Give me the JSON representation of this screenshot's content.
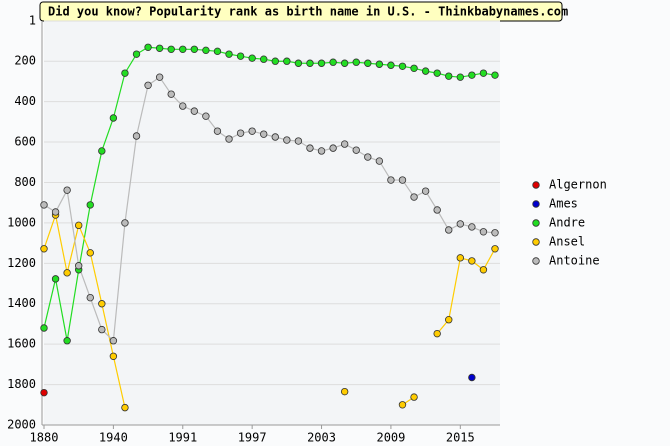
{
  "chart_data": {
    "type": "line",
    "title": "Did you know? Popularity rank as birth name in U.S. - Thinkbabynames.com",
    "categories": [
      1880,
      null,
      null,
      null,
      null,
      null,
      1940,
      null,
      null,
      null,
      null,
      null,
      1991,
      null,
      null,
      null,
      null,
      null,
      1997,
      null,
      null,
      null,
      null,
      null,
      2003,
      null,
      null,
      null,
      null,
      null,
      2009,
      null,
      null,
      null,
      null,
      null,
      2015,
      null,
      null,
      null
    ],
    "ylim": [
      1,
      2000
    ],
    "inverted": true,
    "yticks": [
      1,
      200,
      400,
      600,
      800,
      1000,
      1200,
      1400,
      1600,
      1800,
      2000
    ],
    "grid": true,
    "legend": "right",
    "series": [
      {
        "name": "Algernon",
        "color": "#dd0000",
        "values": [
          1840,
          null,
          null,
          null,
          null,
          null,
          null,
          null,
          null,
          null,
          null,
          null,
          null,
          null,
          null,
          null,
          null,
          null,
          null,
          null,
          null,
          null,
          null,
          null,
          null,
          null,
          null,
          null,
          null,
          null,
          null,
          null,
          null,
          null,
          null,
          null,
          null,
          null,
          null,
          null
        ]
      },
      {
        "name": "Ames",
        "color": "#0000cc",
        "values": [
          null,
          null,
          null,
          null,
          null,
          null,
          null,
          null,
          null,
          null,
          null,
          null,
          null,
          null,
          null,
          null,
          null,
          null,
          null,
          null,
          null,
          null,
          null,
          null,
          null,
          null,
          null,
          null,
          null,
          null,
          null,
          null,
          null,
          null,
          null,
          null,
          null,
          1765,
          null,
          null
        ]
      },
      {
        "name": "Andre",
        "color": "#22dd22",
        "values": [
          1520,
          1277,
          1583,
          1232,
          911,
          644,
          481,
          259,
          165,
          131,
          136,
          141,
          141,
          141,
          146,
          151,
          165,
          175,
          185,
          190,
          200,
          200,
          210,
          210,
          210,
          205,
          210,
          205,
          210,
          215,
          220,
          225,
          235,
          249,
          259,
          274,
          279,
          269,
          259,
          269
        ]
      },
      {
        "name": "Ansel",
        "color": "#ffcc00",
        "values": [
          1128,
          961,
          1247,
          1012,
          1148,
          1400,
          1660,
          1914,
          null,
          null,
          null,
          null,
          null,
          null,
          null,
          null,
          null,
          null,
          null,
          null,
          null,
          null,
          null,
          null,
          null,
          null,
          1835,
          null,
          null,
          null,
          null,
          1900,
          1862,
          null,
          1548,
          1479,
          1173,
          1188,
          1232,
          1128
        ]
      },
      {
        "name": "Antoine",
        "color": "#bbbbbb",
        "values": [
          911,
          946,
          838,
          1212,
          1370,
          1528,
          1583,
          1000,
          570,
          319,
          279,
          363,
          422,
          447,
          472,
          546,
          585,
          556,
          546,
          561,
          575,
          590,
          595,
          630,
          644,
          630,
          610,
          640,
          674,
          694,
          788,
          788,
          872,
          843,
          936,
          1035,
          1005,
          1020,
          1044,
          1049
        ]
      }
    ]
  }
}
